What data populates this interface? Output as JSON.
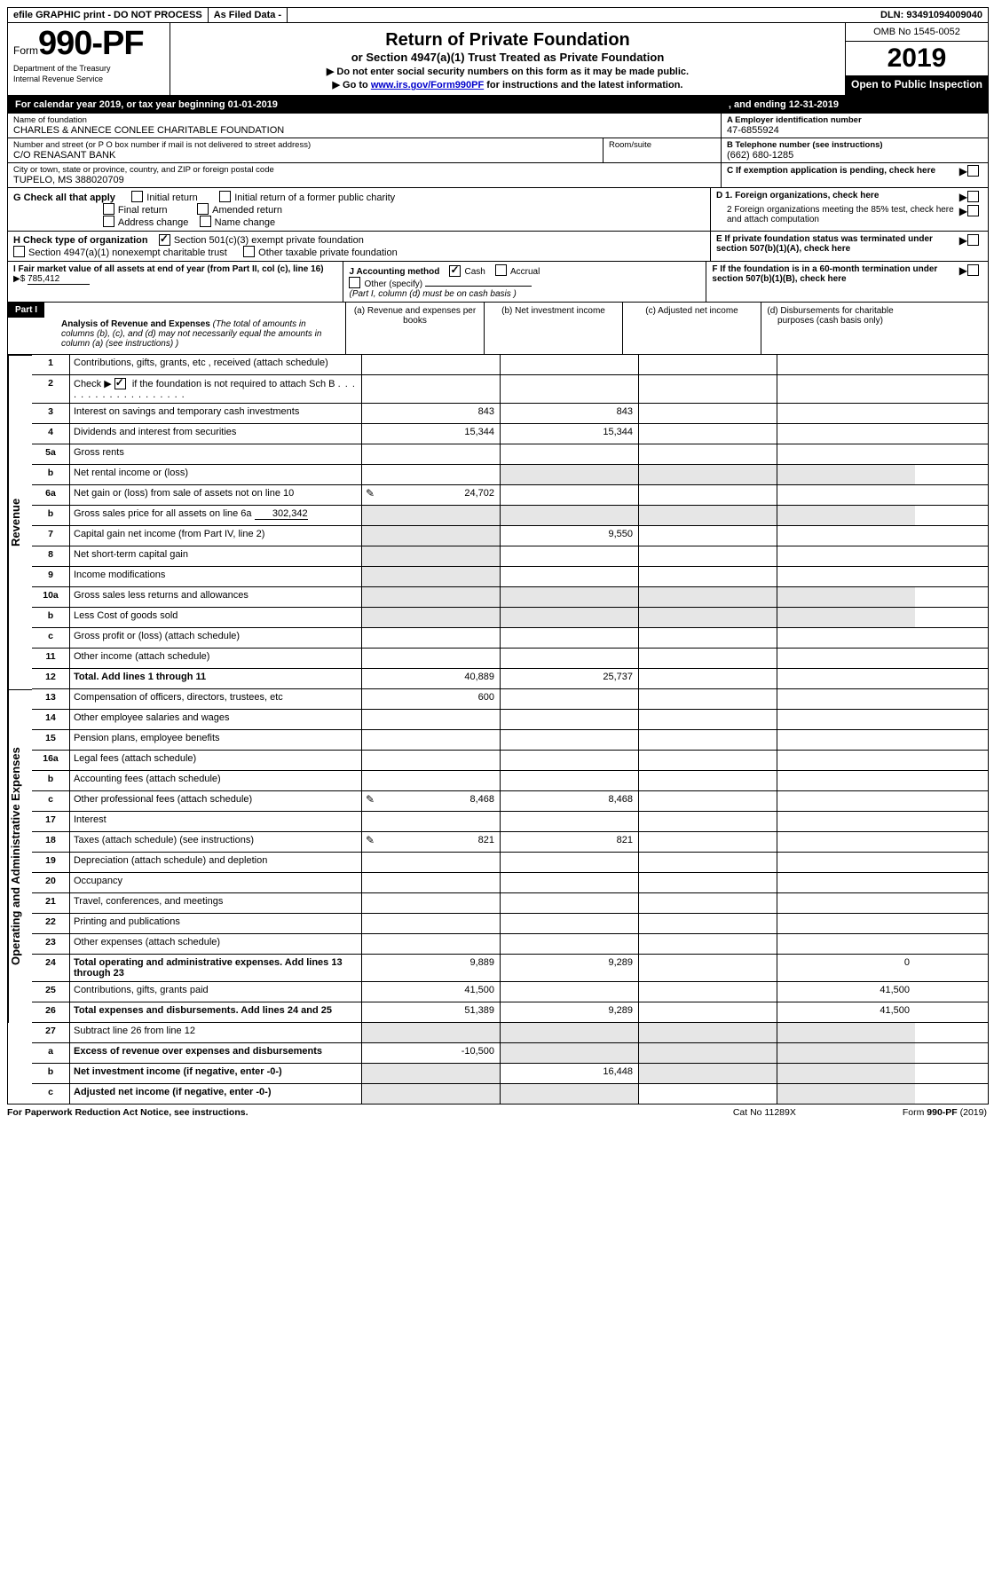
{
  "topbar": {
    "efile": "efile GRAPHIC print - DO NOT PROCESS",
    "asfiled": "As Filed Data -",
    "dln": "DLN: 93491094009040"
  },
  "header": {
    "form_prefix": "Form",
    "form_number": "990-PF",
    "dept1": "Department of the Treasury",
    "dept2": "Internal Revenue Service",
    "title": "Return of Private Foundation",
    "subtitle": "or Section 4947(a)(1) Trust Treated as Private Foundation",
    "note1": "▶ Do not enter social security numbers on this form as it may be made public.",
    "note2_pre": "▶ Go to ",
    "note2_link": "www.irs.gov/Form990PF",
    "note2_post": " for instructions and the latest information.",
    "omb": "OMB No 1545-0052",
    "year": "2019",
    "open": "Open to Public Inspection"
  },
  "calyear": {
    "left": "For calendar year 2019, or tax year beginning 01-01-2019",
    "right": ", and ending 12-31-2019"
  },
  "id": {
    "name_lbl": "Name of foundation",
    "name_val": "CHARLES & ANNECE CONLEE CHARITABLE FOUNDATION",
    "addr_lbl": "Number and street (or P O  box number if mail is not delivered to street address)",
    "addr_val": "C/O RENASANT BANK",
    "room_lbl": "Room/suite",
    "city_lbl": "City or town, state or province, country, and ZIP or foreign postal code",
    "city_val": "TUPELO, MS  388020709",
    "a_lbl": "A Employer identification number",
    "a_val": "47-6855924",
    "b_lbl": "B Telephone number (see instructions)",
    "b_val": "(662) 680-1285",
    "c_lbl": "C If exemption application is pending, check here"
  },
  "g": {
    "label": "G Check all that apply",
    "o1": "Initial return",
    "o2": "Initial return of a former public charity",
    "o3": "Final return",
    "o4": "Amended return",
    "o5": "Address change",
    "o6": "Name change"
  },
  "h": {
    "label": "H Check type of organization",
    "o1": "Section 501(c)(3) exempt private foundation",
    "o2": "Section 4947(a)(1) nonexempt charitable trust",
    "o3": "Other taxable private foundation"
  },
  "d": {
    "d1": "D 1. Foreign organizations, check here",
    "d2": "2  Foreign organizations meeting the 85% test, check here and attach computation",
    "e": "E  If private foundation status was terminated under section 507(b)(1)(A), check here"
  },
  "i": {
    "label": "I Fair market value of all assets at end of year (from Part II, col  (c), line 16)",
    "arrow": "▶$",
    "value": "785,412"
  },
  "j": {
    "label": "J Accounting method",
    "o1": "Cash",
    "o2": "Accrual",
    "o3": "Other (specify)",
    "note": "(Part I, column (d) must be on cash basis )"
  },
  "f": {
    "label": "F  If the foundation is in a 60-month termination under section 507(b)(1)(B), check here"
  },
  "part1": {
    "label": "Part I",
    "title": "Analysis of Revenue and Expenses",
    "subtitle": " (The total of amounts in columns (b), (c), and (d) may not necessarily equal the amounts in column (a) (see instructions) )",
    "col_a": "(a) Revenue and expenses per books",
    "col_b": "(b) Net investment income",
    "col_c": "(c) Adjusted net income",
    "col_d": "(d) Disbursements for charitable purposes (cash basis only)"
  },
  "sections": {
    "revenue": "Revenue",
    "expenses": "Operating and Administrative Expenses"
  },
  "rows": {
    "r1": {
      "n": "1",
      "d": "Contributions, gifts, grants, etc , received (attach schedule)"
    },
    "r2": {
      "n": "2",
      "d_pre": "Check ▶ ",
      "d_post": " if the foundation is not required to attach Sch  B"
    },
    "r3": {
      "n": "3",
      "d": "Interest on savings and temporary cash investments",
      "a": "843",
      "b": "843"
    },
    "r4": {
      "n": "4",
      "d": "Dividends and interest from securities",
      "a": "15,344",
      "b": "15,344"
    },
    "r5a": {
      "n": "5a",
      "d": "Gross rents"
    },
    "r5b": {
      "n": "b",
      "d": "Net rental income or (loss)"
    },
    "r6a": {
      "n": "6a",
      "d": "Net gain or (loss) from sale of assets not on line 10",
      "a": "24,702",
      "icon": "1"
    },
    "r6b": {
      "n": "b",
      "d": "Gross sales price for all assets on line 6a",
      "inline": "302,342"
    },
    "r7": {
      "n": "7",
      "d": "Capital gain net income (from Part IV, line 2)",
      "b": "9,550"
    },
    "r8": {
      "n": "8",
      "d": "Net short-term capital gain"
    },
    "r9": {
      "n": "9",
      "d": "Income modifications"
    },
    "r10a": {
      "n": "10a",
      "d": "Gross sales less returns and allowances"
    },
    "r10b": {
      "n": "b",
      "d": "Less  Cost of goods sold"
    },
    "r10c": {
      "n": "c",
      "d": "Gross profit or (loss) (attach schedule)"
    },
    "r11": {
      "n": "11",
      "d": "Other income (attach schedule)"
    },
    "r12": {
      "n": "12",
      "d": "Total. Add lines 1 through 11",
      "a": "40,889",
      "b": "25,737",
      "bold": "1"
    },
    "r13": {
      "n": "13",
      "d": "Compensation of officers, directors, trustees, etc",
      "a": "600"
    },
    "r14": {
      "n": "14",
      "d": "Other employee salaries and wages"
    },
    "r15": {
      "n": "15",
      "d": "Pension plans, employee benefits"
    },
    "r16a": {
      "n": "16a",
      "d": "Legal fees (attach schedule)"
    },
    "r16b": {
      "n": "b",
      "d": "Accounting fees (attach schedule)"
    },
    "r16c": {
      "n": "c",
      "d": "Other professional fees (attach schedule)",
      "a": "8,468",
      "b": "8,468",
      "icon": "1"
    },
    "r17": {
      "n": "17",
      "d": "Interest"
    },
    "r18": {
      "n": "18",
      "d": "Taxes (attach schedule) (see instructions)",
      "a": "821",
      "b": "821",
      "icon": "1"
    },
    "r19": {
      "n": "19",
      "d": "Depreciation (attach schedule) and depletion"
    },
    "r20": {
      "n": "20",
      "d": "Occupancy"
    },
    "r21": {
      "n": "21",
      "d": "Travel, conferences, and meetings"
    },
    "r22": {
      "n": "22",
      "d": "Printing and publications"
    },
    "r23": {
      "n": "23",
      "d": "Other expenses (attach schedule)"
    },
    "r24": {
      "n": "24",
      "d": "Total operating and administrative expenses. Add lines 13 through 23",
      "a": "9,889",
      "b": "9,289",
      "dd": "0",
      "bold": "1"
    },
    "r25": {
      "n": "25",
      "d": "Contributions, gifts, grants paid",
      "a": "41,500",
      "dd": "41,500"
    },
    "r26": {
      "n": "26",
      "d": "Total expenses and disbursements. Add lines 24 and 25",
      "a": "51,389",
      "b": "9,289",
      "dd": "41,500",
      "bold": "1"
    },
    "r27": {
      "n": "27",
      "d": "Subtract line 26 from line 12"
    },
    "r27a": {
      "n": "a",
      "d": "Excess of revenue over expenses and disbursements",
      "a": "-10,500",
      "bold": "1"
    },
    "r27b": {
      "n": "b",
      "d": "Net investment income (if negative, enter -0-)",
      "b": "16,448",
      "bold": "1"
    },
    "r27c": {
      "n": "c",
      "d": "Adjusted net income (if negative, enter -0-)",
      "bold": "1"
    }
  },
  "footer": {
    "left": "For Paperwork Reduction Act Notice, see instructions.",
    "mid": "Cat  No  11289X",
    "right": "Form 990-PF (2019)"
  }
}
